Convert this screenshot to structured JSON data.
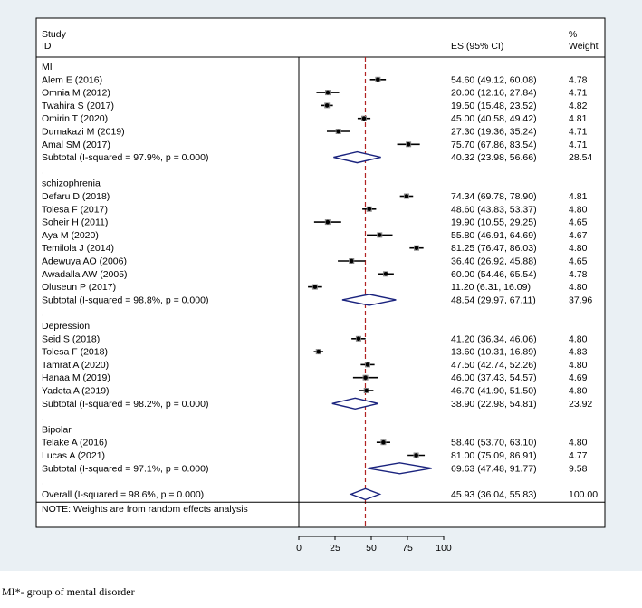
{
  "chart_data": {
    "type": "forest",
    "header": {
      "study": "Study",
      "id": "ID",
      "es": "ES (95% CI)",
      "pct": "%",
      "weight": "Weight"
    },
    "xaxis": {
      "ticks": [
        0,
        25,
        50,
        75,
        100
      ],
      "range": [
        0,
        100
      ],
      "reference": 45.93
    },
    "groups": [
      {
        "name": "MI",
        "studies": [
          {
            "label": "Alem E (2016)",
            "es": 54.6,
            "lo": 49.12,
            "hi": 60.08,
            "ci_text": "54.60 (49.12, 60.08)",
            "weight": "4.78"
          },
          {
            "label": "Omnia M (2012)",
            "es": 20.0,
            "lo": 12.16,
            "hi": 27.84,
            "ci_text": "20.00 (12.16, 27.84)",
            "weight": "4.71"
          },
          {
            "label": "Twahira S (2017)",
            "es": 19.5,
            "lo": 15.48,
            "hi": 23.52,
            "ci_text": "19.50 (15.48, 23.52)",
            "weight": "4.82"
          },
          {
            "label": "Omirin T (2020)",
            "es": 45.0,
            "lo": 40.58,
            "hi": 49.42,
            "ci_text": "45.00 (40.58, 49.42)",
            "weight": "4.81"
          },
          {
            "label": "Dumakazi M (2019)",
            "es": 27.3,
            "lo": 19.36,
            "hi": 35.24,
            "ci_text": "27.30 (19.36, 35.24)",
            "weight": "4.71"
          },
          {
            "label": "Amal SM (2017)",
            "es": 75.7,
            "lo": 67.86,
            "hi": 83.54,
            "ci_text": "75.70 (67.86, 83.54)",
            "weight": "4.71"
          }
        ],
        "subtotal": {
          "label": "Subtotal  (I-squared = 97.9%, p = 0.000)",
          "es": 40.32,
          "lo": 23.98,
          "hi": 56.66,
          "ci_text": "40.32 (23.98, 56.66)",
          "weight": "28.54"
        }
      },
      {
        "name": "schizophrenia",
        "studies": [
          {
            "label": "Defaru D (2018)",
            "es": 74.34,
            "lo": 69.78,
            "hi": 78.9,
            "ci_text": "74.34 (69.78, 78.90)",
            "weight": "4.81"
          },
          {
            "label": "Tolesa F (2017)",
            "es": 48.6,
            "lo": 43.83,
            "hi": 53.37,
            "ci_text": "48.60 (43.83, 53.37)",
            "weight": "4.80"
          },
          {
            "label": "Soheir H (2011)",
            "es": 19.9,
            "lo": 10.55,
            "hi": 29.25,
            "ci_text": "19.90 (10.55, 29.25)",
            "weight": "4.65"
          },
          {
            "label": "Aya M (2020)",
            "es": 55.8,
            "lo": 46.91,
            "hi": 64.69,
            "ci_text": "55.80 (46.91, 64.69)",
            "weight": "4.67"
          },
          {
            "label": "Temilola J (2014)",
            "es": 81.25,
            "lo": 76.47,
            "hi": 86.03,
            "ci_text": "81.25 (76.47, 86.03)",
            "weight": "4.80"
          },
          {
            "label": "Adewuya AO (2006)",
            "es": 36.4,
            "lo": 26.92,
            "hi": 45.88,
            "ci_text": "36.40 (26.92, 45.88)",
            "weight": "4.65"
          },
          {
            "label": "Awadalla AW (2005)",
            "es": 60.0,
            "lo": 54.46,
            "hi": 65.54,
            "ci_text": "60.00 (54.46, 65.54)",
            "weight": "4.78"
          },
          {
            "label": "Oluseun P (2017)",
            "es": 11.2,
            "lo": 6.31,
            "hi": 16.09,
            "ci_text": "11.20 (6.31, 16.09)",
            "weight": "4.80"
          }
        ],
        "subtotal": {
          "label": "Subtotal  (I-squared = 98.8%, p = 0.000)",
          "es": 48.54,
          "lo": 29.97,
          "hi": 67.11,
          "ci_text": "48.54 (29.97, 67.11)",
          "weight": "37.96"
        }
      },
      {
        "name": "Depression",
        "studies": [
          {
            "label": "Seid S (2018)",
            "es": 41.2,
            "lo": 36.34,
            "hi": 46.06,
            "ci_text": "41.20 (36.34, 46.06)",
            "weight": "4.80"
          },
          {
            "label": "Tolesa F (2018)",
            "es": 13.6,
            "lo": 10.31,
            "hi": 16.89,
            "ci_text": "13.60 (10.31, 16.89)",
            "weight": "4.83"
          },
          {
            "label": "Tamrat A (2020)",
            "es": 47.5,
            "lo": 42.74,
            "hi": 52.26,
            "ci_text": "47.50 (42.74, 52.26)",
            "weight": "4.80"
          },
          {
            "label": "Hanaa M (2019)",
            "es": 46.0,
            "lo": 37.43,
            "hi": 54.57,
            "ci_text": "46.00 (37.43, 54.57)",
            "weight": "4.69"
          },
          {
            "label": "Yadeta A (2019)",
            "es": 46.7,
            "lo": 41.9,
            "hi": 51.5,
            "ci_text": "46.70 (41.90, 51.50)",
            "weight": "4.80"
          }
        ],
        "subtotal": {
          "label": "Subtotal  (I-squared = 98.2%, p = 0.000)",
          "es": 38.9,
          "lo": 22.98,
          "hi": 54.81,
          "ci_text": "38.90 (22.98, 54.81)",
          "weight": "23.92"
        }
      },
      {
        "name": "Bipolar",
        "studies": [
          {
            "label": "Telake A (2016)",
            "es": 58.4,
            "lo": 53.7,
            "hi": 63.1,
            "ci_text": "58.40 (53.70, 63.10)",
            "weight": "4.80"
          },
          {
            "label": "Lucas A (2021)",
            "es": 81.0,
            "lo": 75.09,
            "hi": 86.91,
            "ci_text": "81.00 (75.09, 86.91)",
            "weight": "4.77"
          }
        ],
        "subtotal": {
          "label": "Subtotal  (I-squared = 97.1%, p = 0.000)",
          "es": 69.63,
          "lo": 47.48,
          "hi": 91.77,
          "ci_text": "69.63 (47.48, 91.77)",
          "weight": "9.58"
        }
      }
    ],
    "overall": {
      "label": "Overall  (I-squared = 98.6%, p = 0.000)",
      "es": 45.93,
      "lo": 36.04,
      "hi": 55.83,
      "ci_text": "45.93 (36.04, 55.83)",
      "weight": "100.00"
    },
    "note": "NOTE: Weights are from random effects analysis"
  },
  "caption": "MI*- group of mental disorder",
  "colors": {
    "background": "#eaf0f4",
    "diamond": "#1a237e",
    "reference_line": "#b22222",
    "ink": "#000000"
  }
}
